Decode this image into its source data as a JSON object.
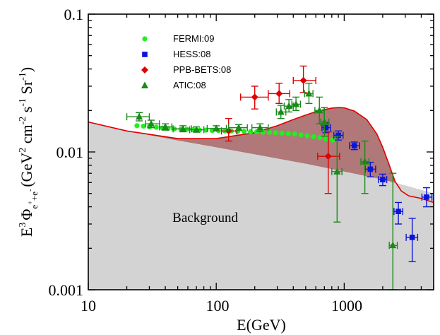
{
  "chart_data": {
    "type": "scatter",
    "title": "",
    "xlabel": "E(GeV)",
    "ylabel_parts": {
      "e": "E",
      "e_exp": "3",
      "phi": "Φ",
      "sub_e1": "e",
      "sub_plus": "+",
      "sub_plus2": "+",
      "sub_e2": "e",
      "sub_minus": "-",
      "units_open": "(GeV",
      "units_2": "2",
      "units_cm": " cm",
      "units_m2": "-2",
      "units_s": " s",
      "units_m1a": "-1",
      "units_sr": " Sr",
      "units_m1b": "-1",
      "units_close": ")"
    },
    "xscale": "log",
    "yscale": "log",
    "xlim": [
      10,
      5000
    ],
    "ylim": [
      0.001,
      0.1
    ],
    "x_ticks": [
      10,
      100,
      1000
    ],
    "x_tick_labels": [
      "10",
      "100",
      "1000"
    ],
    "y_ticks": [
      0.001,
      0.01,
      0.1
    ],
    "y_tick_labels": [
      "0.001",
      "0.01",
      "0.1"
    ],
    "grid": false,
    "legend_position": "top-left",
    "annotations": [
      {
        "text": "Background",
        "x": 100,
        "y": 0.0031
      }
    ],
    "colors": {
      "background_fill": "#d3d3d3",
      "dm_fill": "#b07878",
      "model_line": "#e00000",
      "fermi": "#22ee22",
      "hess": "#0a14d8",
      "ppb": "#e00000",
      "atic": "#1a8a1a"
    },
    "background_curve": {
      "x": [
        10,
        20,
        50,
        100,
        200,
        500,
        1000,
        2000,
        3000,
        5000
      ],
      "y": [
        0.0165,
        0.0142,
        0.0121,
        0.0108,
        0.0096,
        0.0082,
        0.0072,
        0.0063,
        0.0057,
        0.005
      ]
    },
    "total_model": {
      "x": [
        10,
        20,
        50,
        100,
        200,
        300,
        400,
        500,
        600,
        700,
        800,
        900,
        1000,
        1200,
        1500,
        1800,
        2000,
        2200,
        2500,
        2800,
        3200,
        4000,
        5000
      ],
      "y": [
        0.0165,
        0.0142,
        0.0125,
        0.0125,
        0.0138,
        0.0155,
        0.0172,
        0.0185,
        0.0196,
        0.0203,
        0.0208,
        0.021,
        0.0209,
        0.0198,
        0.0172,
        0.0135,
        0.0108,
        0.0085,
        0.0061,
        0.0052,
        0.0048,
        0.0046,
        0.0043
      ]
    },
    "series": [
      {
        "name": "FERMI:09",
        "marker": "circle",
        "points": [
          {
            "x": 24,
            "y": 0.0155,
            "ylo": 0.015,
            "yhi": 0.016
          },
          {
            "x": 27,
            "y": 0.0154,
            "ylo": 0.0149,
            "yhi": 0.0159
          },
          {
            "x": 30,
            "y": 0.0152,
            "ylo": 0.0147,
            "yhi": 0.0157
          },
          {
            "x": 34,
            "y": 0.0151,
            "ylo": 0.0146,
            "yhi": 0.0156
          },
          {
            "x": 38,
            "y": 0.0149,
            "ylo": 0.0144,
            "yhi": 0.0154
          },
          {
            "x": 42,
            "y": 0.0148,
            "ylo": 0.0143,
            "yhi": 0.0153
          },
          {
            "x": 47,
            "y": 0.0147,
            "ylo": 0.0142,
            "yhi": 0.0152
          },
          {
            "x": 53,
            "y": 0.0146,
            "ylo": 0.0141,
            "yhi": 0.0151
          },
          {
            "x": 59,
            "y": 0.0146,
            "ylo": 0.0141,
            "yhi": 0.0151
          },
          {
            "x": 66,
            "y": 0.0145,
            "ylo": 0.014,
            "yhi": 0.015
          },
          {
            "x": 74,
            "y": 0.0144,
            "ylo": 0.0139,
            "yhi": 0.0149
          },
          {
            "x": 83,
            "y": 0.0144,
            "ylo": 0.0139,
            "yhi": 0.0149
          },
          {
            "x": 93,
            "y": 0.0143,
            "ylo": 0.0138,
            "yhi": 0.0148
          },
          {
            "x": 104,
            "y": 0.0143,
            "ylo": 0.0138,
            "yhi": 0.0148
          },
          {
            "x": 117,
            "y": 0.0142,
            "ylo": 0.0137,
            "yhi": 0.0147
          },
          {
            "x": 131,
            "y": 0.0142,
            "ylo": 0.0137,
            "yhi": 0.0147
          },
          {
            "x": 147,
            "y": 0.0141,
            "ylo": 0.0136,
            "yhi": 0.0146
          },
          {
            "x": 165,
            "y": 0.0141,
            "ylo": 0.0136,
            "yhi": 0.0146
          },
          {
            "x": 185,
            "y": 0.014,
            "ylo": 0.0135,
            "yhi": 0.0145
          },
          {
            "x": 207,
            "y": 0.014,
            "ylo": 0.0135,
            "yhi": 0.0145
          },
          {
            "x": 232,
            "y": 0.0139,
            "ylo": 0.0134,
            "yhi": 0.0144
          },
          {
            "x": 260,
            "y": 0.0139,
            "ylo": 0.0134,
            "yhi": 0.0144
          },
          {
            "x": 291,
            "y": 0.0138,
            "ylo": 0.0133,
            "yhi": 0.0143
          },
          {
            "x": 326,
            "y": 0.0137,
            "ylo": 0.0132,
            "yhi": 0.0142
          },
          {
            "x": 366,
            "y": 0.0136,
            "ylo": 0.0131,
            "yhi": 0.0141
          },
          {
            "x": 410,
            "y": 0.0135,
            "ylo": 0.013,
            "yhi": 0.014
          },
          {
            "x": 459,
            "y": 0.0133,
            "ylo": 0.0128,
            "yhi": 0.0138
          },
          {
            "x": 514,
            "y": 0.0131,
            "ylo": 0.0126,
            "yhi": 0.0136
          },
          {
            "x": 576,
            "y": 0.0129,
            "ylo": 0.0124,
            "yhi": 0.0134
          },
          {
            "x": 645,
            "y": 0.0127,
            "ylo": 0.0122,
            "yhi": 0.0132
          },
          {
            "x": 722,
            "y": 0.0124,
            "ylo": 0.0119,
            "yhi": 0.0129
          },
          {
            "x": 809,
            "y": 0.0122,
            "ylo": 0.0117,
            "yhi": 0.0127
          }
        ]
      },
      {
        "name": "HESS:08",
        "marker": "square",
        "points": [
          {
            "x": 720,
            "y": 0.015,
            "ylo": 0.0138,
            "yhi": 0.0162,
            "xlo": 670,
            "xhi": 780
          },
          {
            "x": 900,
            "y": 0.0132,
            "ylo": 0.0122,
            "yhi": 0.0142,
            "xlo": 830,
            "xhi": 980
          },
          {
            "x": 1200,
            "y": 0.0111,
            "ylo": 0.0104,
            "yhi": 0.0118,
            "xlo": 1100,
            "xhi": 1320
          },
          {
            "x": 1600,
            "y": 0.0075,
            "ylo": 0.0066,
            "yhi": 0.0084,
            "xlo": 1460,
            "xhi": 1760
          },
          {
            "x": 2000,
            "y": 0.0063,
            "ylo": 0.0057,
            "yhi": 0.0069,
            "xlo": 1850,
            "xhi": 2150
          },
          {
            "x": 2650,
            "y": 0.0037,
            "ylo": 0.003,
            "yhi": 0.0043,
            "xlo": 2450,
            "xhi": 2870
          },
          {
            "x": 3400,
            "y": 0.0024,
            "ylo": 0.0016,
            "yhi": 0.0033,
            "xlo": 3050,
            "xhi": 3750
          },
          {
            "x": 4400,
            "y": 0.0047,
            "ylo": 0.004,
            "yhi": 0.0055,
            "xlo": 4050,
            "xhi": 4850
          }
        ]
      },
      {
        "name": "PPB-BETS:08",
        "marker": "diamond",
        "points": [
          {
            "x": 200,
            "y": 0.025,
            "ylo": 0.0205,
            "yhi": 0.03,
            "xlo": 155,
            "xhi": 255
          },
          {
            "x": 310,
            "y": 0.0265,
            "ylo": 0.0225,
            "yhi": 0.0315,
            "xlo": 255,
            "xhi": 375
          },
          {
            "x": 480,
            "y": 0.033,
            "ylo": 0.027,
            "yhi": 0.042,
            "xlo": 400,
            "xhi": 600
          },
          {
            "x": 750,
            "y": 0.0093,
            "ylo": 0.005,
            "yhi": 0.014,
            "xlo": 620,
            "xhi": 920
          },
          {
            "x": 125,
            "y": 0.0142,
            "ylo": 0.012,
            "yhi": 0.0175,
            "xlo": 110,
            "xhi": 145
          }
        ]
      },
      {
        "name": "ATIC:08",
        "marker": "triangle",
        "points": [
          {
            "x": 25,
            "y": 0.018,
            "ylo": 0.0168,
            "yhi": 0.0193,
            "xlo": 20,
            "xhi": 30
          },
          {
            "x": 31,
            "y": 0.016,
            "ylo": 0.015,
            "yhi": 0.017,
            "xlo": 28,
            "xhi": 36
          },
          {
            "x": 40,
            "y": 0.0152,
            "ylo": 0.0144,
            "yhi": 0.016,
            "xlo": 36,
            "xhi": 45
          },
          {
            "x": 55,
            "y": 0.0147,
            "ylo": 0.014,
            "yhi": 0.0155,
            "xlo": 46,
            "xhi": 64
          },
          {
            "x": 70,
            "y": 0.0145,
            "ylo": 0.0139,
            "yhi": 0.0152,
            "xlo": 62,
            "xhi": 80
          },
          {
            "x": 100,
            "y": 0.0148,
            "ylo": 0.0142,
            "yhi": 0.0155,
            "xlo": 85,
            "xhi": 120
          },
          {
            "x": 150,
            "y": 0.015,
            "ylo": 0.0143,
            "yhi": 0.0158,
            "xlo": 125,
            "xhi": 175
          },
          {
            "x": 220,
            "y": 0.015,
            "ylo": 0.0141,
            "yhi": 0.016,
            "xlo": 190,
            "xhi": 255
          },
          {
            "x": 320,
            "y": 0.0195,
            "ylo": 0.0175,
            "yhi": 0.0218,
            "xlo": 295,
            "xhi": 350
          },
          {
            "x": 370,
            "y": 0.0215,
            "ylo": 0.0195,
            "yhi": 0.024,
            "xlo": 340,
            "xhi": 400
          },
          {
            "x": 420,
            "y": 0.0222,
            "ylo": 0.02,
            "yhi": 0.025,
            "xlo": 390,
            "xhi": 455
          },
          {
            "x": 530,
            "y": 0.0265,
            "ylo": 0.0225,
            "yhi": 0.0315,
            "xlo": 490,
            "xhi": 570
          },
          {
            "x": 640,
            "y": 0.02,
            "ylo": 0.016,
            "yhi": 0.025,
            "xlo": 590,
            "xhi": 695
          },
          {
            "x": 700,
            "y": 0.0165,
            "ylo": 0.013,
            "yhi": 0.021,
            "xlo": 655,
            "xhi": 760
          },
          {
            "x": 880,
            "y": 0.0072,
            "ylo": 0.0031,
            "yhi": 0.013,
            "xlo": 800,
            "xhi": 960
          },
          {
            "x": 1450,
            "y": 0.0085,
            "ylo": 0.005,
            "yhi": 0.012,
            "xlo": 1350,
            "xhi": 1560
          },
          {
            "x": 2400,
            "y": 0.0021,
            "ylo": 0.001,
            "yhi": 0.007,
            "xlo": 2250,
            "xhi": 2600
          }
        ]
      }
    ]
  }
}
